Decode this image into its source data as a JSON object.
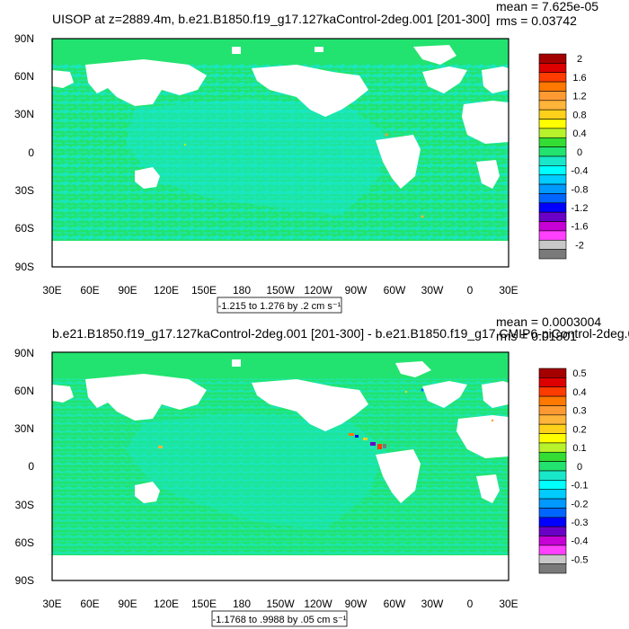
{
  "palette": {
    "white": "#ffffff",
    "ocean_zero": "#22e36f",
    "ocean_neg": "#19e7c9",
    "land": "#ffffff"
  },
  "chart_data": [
    {
      "type": "heatmap",
      "title": "UISOP at z=2889.4m, b.e21.B1850.f19_g17.127kaControl-2deg.001 [201-300]",
      "stats": {
        "mean": "mean = 7.625e-05",
        "rms": "rms = 0.03742"
      },
      "x_ticks": [
        "30E",
        "60E",
        "90E",
        "120E",
        "150E",
        "180",
        "150W",
        "120W",
        "90W",
        "60W",
        "30W",
        "0",
        "30E"
      ],
      "y_ticks": [
        "90N",
        "60N",
        "30N",
        "0",
        "30S",
        "60S",
        "90S"
      ],
      "xlim": [
        30,
        390
      ],
      "ylim": [
        -90,
        90
      ],
      "contour_label": "-1.215 to 1.276 by .2 cm s⁻¹",
      "colorbar": {
        "labels": [
          "2",
          "1.6",
          "1.2",
          "0.8",
          "0.4",
          "0",
          "-0.4",
          "-0.8",
          "-1.2",
          "-1.6",
          "-2"
        ],
        "colors": [
          "#a50000",
          "#dd0000",
          "#ff3c00",
          "#ff7800",
          "#ff9a33",
          "#ffb43a",
          "#ffd11a",
          "#ffff00",
          "#b7f22b",
          "#33dd33",
          "#22e36f",
          "#19e7c9",
          "#00ffff",
          "#00ccff",
          "#0099ff",
          "#0066ff",
          "#0000ff",
          "#6a00c8",
          "#c700d6",
          "#ff40ff",
          "#c8c8c8",
          "#7a7a7a"
        ]
      },
      "values_summary": {
        "dominant_value_range": [
          -0.4,
          0.4
        ]
      }
    },
    {
      "type": "heatmap",
      "title": "b.e21.B1850.f19_g17.127kaControl-2deg.001 [201-300] - b.e21.B1850.f19_g17.CMIP6-piControl-2deg.0",
      "stats": {
        "mean": "mean = 0.0003004",
        "rms": "rms = 0.01801"
      },
      "x_ticks": [
        "30E",
        "60E",
        "90E",
        "120E",
        "150E",
        "180",
        "150W",
        "120W",
        "90W",
        "60W",
        "30W",
        "0",
        "30E"
      ],
      "y_ticks": [
        "90N",
        "60N",
        "30N",
        "0",
        "30S",
        "60S",
        "90S"
      ],
      "xlim": [
        30,
        390
      ],
      "ylim": [
        -90,
        90
      ],
      "contour_label": "-1.1768 to .9988 by .05 cm s⁻¹",
      "colorbar": {
        "labels": [
          "0.5",
          "0.4",
          "0.3",
          "0.2",
          "0.1",
          "0",
          "-0.1",
          "-0.2",
          "-0.3",
          "-0.4",
          "-0.5"
        ],
        "colors": [
          "#a50000",
          "#dd0000",
          "#ff3c00",
          "#ff7800",
          "#ff9a33",
          "#ffb43a",
          "#ffd11a",
          "#ffff00",
          "#b7f22b",
          "#33dd33",
          "#22e36f",
          "#19e7c9",
          "#00ffff",
          "#00ccff",
          "#0099ff",
          "#0066ff",
          "#0000ff",
          "#6a00c8",
          "#c700d6",
          "#ff40ff",
          "#c8c8c8",
          "#7a7a7a"
        ]
      },
      "values_summary": {
        "dominant_value_range": [
          -0.1,
          0.1
        ]
      }
    }
  ]
}
